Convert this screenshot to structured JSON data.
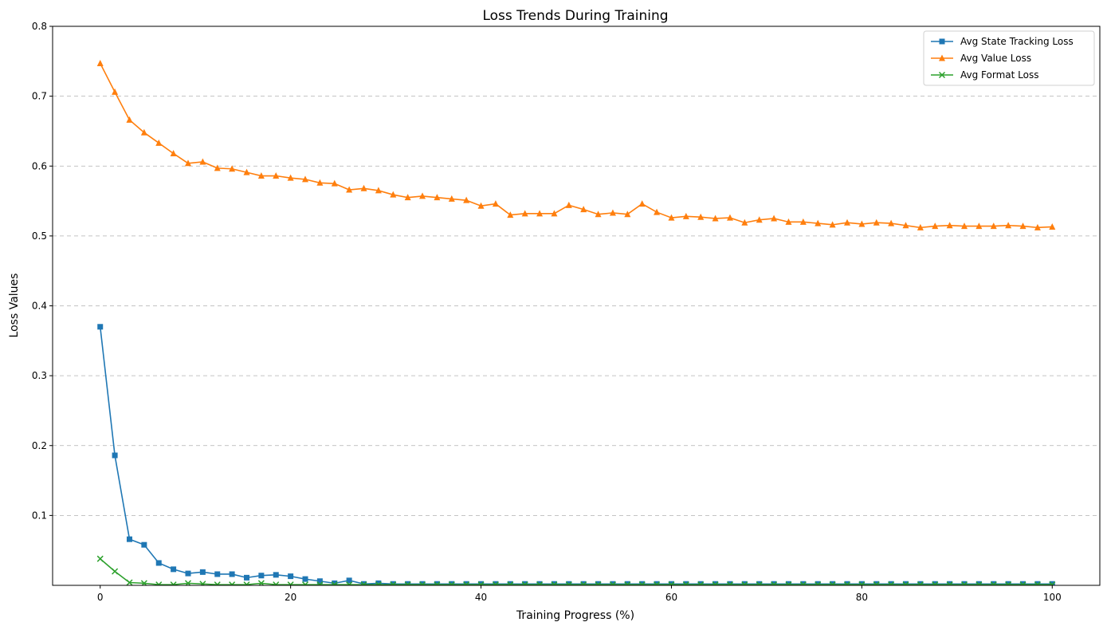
{
  "chart_data": {
    "type": "line",
    "title": "Loss Trends During Training",
    "xlabel": "Training Progress (%)",
    "ylabel": "Loss Values",
    "xlim": [
      -5,
      105
    ],
    "ylim": [
      0,
      0.8
    ],
    "xticks": [
      0,
      20,
      40,
      60,
      80,
      100
    ],
    "yticks": [
      0.1,
      0.2,
      0.3,
      0.4,
      0.5,
      0.6,
      0.7,
      0.8
    ],
    "grid": "y-dashed",
    "legend_position": "top-right",
    "x_points": 66,
    "series": [
      {
        "name": "Avg State Tracking Loss",
        "color": "#1f77b4",
        "marker": "square",
        "values": [
          0.37,
          0.186,
          0.066,
          0.058,
          0.032,
          0.023,
          0.017,
          0.019,
          0.016,
          0.016,
          0.011,
          0.014,
          0.015,
          0.013,
          0.009,
          0.006,
          0.003,
          0.007,
          0.002,
          0.003,
          0.002,
          0.002,
          0.002,
          0.002,
          0.002,
          0.002,
          0.002,
          0.002,
          0.002,
          0.002,
          0.002,
          0.002,
          0.002,
          0.002,
          0.002,
          0.002,
          0.002,
          0.002,
          0.002,
          0.002,
          0.002,
          0.002,
          0.002,
          0.002,
          0.002,
          0.002,
          0.002,
          0.002,
          0.002,
          0.002,
          0.002,
          0.002,
          0.002,
          0.002,
          0.002,
          0.002,
          0.002,
          0.002,
          0.002,
          0.002,
          0.002,
          0.002,
          0.002,
          0.002,
          0.002,
          0.002
        ]
      },
      {
        "name": "Avg Value Loss",
        "color": "#ff7f0e",
        "marker": "triangle",
        "values": [
          0.747,
          0.706,
          0.666,
          0.648,
          0.633,
          0.618,
          0.604,
          0.606,
          0.597,
          0.596,
          0.591,
          0.586,
          0.586,
          0.583,
          0.581,
          0.576,
          0.575,
          0.566,
          0.568,
          0.565,
          0.559,
          0.555,
          0.557,
          0.555,
          0.553,
          0.551,
          0.543,
          0.546,
          0.53,
          0.532,
          0.532,
          0.532,
          0.544,
          0.538,
          0.531,
          0.533,
          0.531,
          0.546,
          0.534,
          0.526,
          0.528,
          0.527,
          0.525,
          0.526,
          0.519,
          0.523,
          0.525,
          0.52,
          0.52,
          0.518,
          0.516,
          0.519,
          0.517,
          0.519,
          0.518,
          0.515,
          0.512,
          0.514,
          0.515,
          0.514,
          0.514,
          0.514,
          0.515,
          0.514,
          0.512,
          0.513
        ]
      },
      {
        "name": "Avg Format Loss",
        "color": "#2ca02c",
        "marker": "x",
        "values": [
          0.038,
          0.02,
          0.004,
          0.003,
          0.001,
          0.001,
          0.003,
          0.002,
          0.001,
          0.001,
          0.001,
          0.003,
          0.001,
          0.001,
          0.001,
          0.001,
          0.001,
          0.001,
          0.001,
          0.001,
          0.001,
          0.001,
          0.001,
          0.001,
          0.001,
          0.001,
          0.001,
          0.001,
          0.001,
          0.001,
          0.001,
          0.001,
          0.001,
          0.001,
          0.001,
          0.001,
          0.001,
          0.001,
          0.001,
          0.001,
          0.001,
          0.001,
          0.001,
          0.001,
          0.001,
          0.001,
          0.001,
          0.001,
          0.001,
          0.001,
          0.001,
          0.001,
          0.001,
          0.001,
          0.001,
          0.001,
          0.001,
          0.001,
          0.001,
          0.001,
          0.001,
          0.001,
          0.001,
          0.001,
          0.001,
          0.001
        ]
      }
    ]
  }
}
